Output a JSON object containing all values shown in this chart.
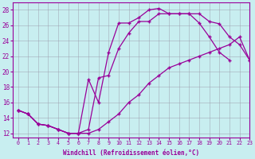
{
  "xlabel": "Windchill (Refroidissement éolien,°C)",
  "bg_color": "#c8eef0",
  "line_color": "#990099",
  "grid_color": "#9999aa",
  "ylim": [
    11.5,
    29
  ],
  "xlim": [
    -0.5,
    23
  ],
  "yticks": [
    12,
    14,
    16,
    18,
    20,
    22,
    24,
    26,
    28
  ],
  "xticks": [
    0,
    1,
    2,
    3,
    4,
    5,
    6,
    7,
    8,
    9,
    10,
    11,
    12,
    13,
    14,
    15,
    16,
    17,
    18,
    19,
    20,
    21,
    22,
    23
  ],
  "line1_x": [
    0,
    1,
    2,
    3,
    4,
    5,
    6,
    7,
    8,
    9,
    10,
    11,
    12,
    13,
    14,
    15,
    16,
    17,
    18,
    19,
    20,
    21,
    22,
    23
  ],
  "line1_y": [
    15.0,
    14.5,
    13.2,
    13.0,
    12.5,
    12.0,
    12.0,
    12.0,
    12.5,
    13.5,
    14.5,
    16.0,
    17.0,
    18.5,
    19.5,
    20.5,
    21.0,
    21.5,
    22.0,
    22.5,
    23.0,
    23.5,
    24.5,
    21.5
  ],
  "line2_x": [
    0,
    1,
    2,
    3,
    4,
    5,
    6,
    7,
    8,
    9,
    10,
    11,
    12,
    13,
    14,
    15,
    16,
    17,
    18,
    19,
    20,
    21,
    22,
    23
  ],
  "line2_y": [
    15.0,
    14.5,
    13.2,
    13.0,
    12.5,
    12.0,
    12.0,
    19.0,
    16.0,
    22.5,
    26.3,
    26.3,
    27.0,
    28.0,
    28.2,
    27.5,
    27.5,
    27.5,
    26.3,
    24.5,
    22.5,
    21.5
  ],
  "line2_x2": [
    0,
    1,
    2,
    3,
    4,
    5,
    6,
    7,
    8,
    9,
    10,
    11,
    12,
    13,
    14,
    15,
    16,
    17,
    18,
    19,
    20,
    21
  ],
  "line3_x": [
    0,
    1,
    2,
    3,
    4,
    5,
    6,
    7,
    8,
    9,
    10,
    11,
    12,
    13,
    14,
    15,
    16,
    17,
    18,
    19,
    20,
    21,
    22,
    23
  ],
  "line3_y": [
    15.0,
    14.5,
    13.2,
    13.0,
    12.5,
    12.0,
    12.0,
    12.5,
    19.2,
    19.5,
    23.0,
    25.0,
    26.5,
    26.5,
    27.5,
    27.5,
    27.5,
    27.5,
    27.5,
    26.5,
    26.2,
    24.5,
    23.5,
    21.5
  ]
}
